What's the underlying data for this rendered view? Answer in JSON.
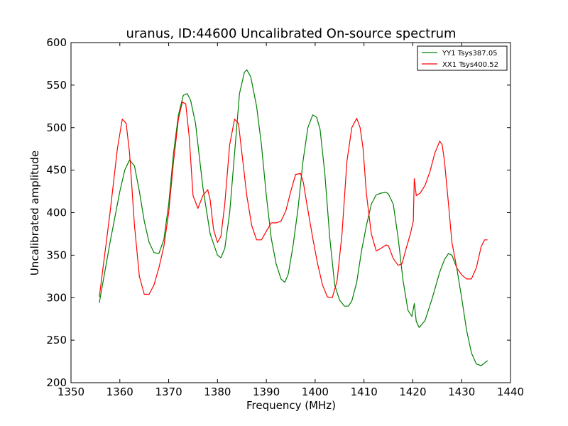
{
  "chart_data": {
    "type": "line",
    "title": "uranus, ID:44600 Uncalibrated On-source spectrum",
    "xlabel": "Frequency (MHz)",
    "ylabel": "Uncalibrated amplitude",
    "xlim": [
      1350,
      1440
    ],
    "ylim": [
      200,
      600
    ],
    "xticks": [
      1350,
      1360,
      1370,
      1380,
      1390,
      1400,
      1410,
      1420,
      1430,
      1440
    ],
    "yticks": [
      200,
      250,
      300,
      350,
      400,
      450,
      500,
      550,
      600
    ],
    "grid": false,
    "legend_position": "top-right",
    "series": [
      {
        "name": "YY1 Tsys387.05",
        "color": "#008000",
        "x": [
          1355.8,
          1358,
          1360,
          1361,
          1362,
          1363,
          1364,
          1365,
          1366,
          1367,
          1368,
          1369,
          1370,
          1371,
          1372,
          1373,
          1373.8,
          1374.5,
          1375.5,
          1377,
          1378.5,
          1380,
          1380.7,
          1381.5,
          1382.5,
          1383.5,
          1384.5,
          1385.5,
          1386,
          1386.8,
          1388,
          1389,
          1390,
          1391,
          1392,
          1393,
          1393.8,
          1394.5,
          1395.5,
          1396.5,
          1397.5,
          1398.5,
          1399.5,
          1400.3,
          1401,
          1402,
          1403,
          1404,
          1405,
          1406,
          1406.8,
          1407.5,
          1408.5,
          1409.5,
          1410.5,
          1411.5,
          1412.5,
          1413.5,
          1414.5,
          1415,
          1416,
          1417,
          1418,
          1419,
          1419.8,
          1420.3,
          1420.7,
          1421.3,
          1422.5,
          1424,
          1425.5,
          1426.5,
          1427.3,
          1428,
          1429,
          1430,
          1431,
          1432,
          1433,
          1434,
          1435.3
        ],
        "y": [
          294,
          365,
          425,
          450,
          462,
          455,
          425,
          390,
          365,
          353,
          352,
          368,
          410,
          470,
          515,
          538,
          540,
          532,
          505,
          430,
          375,
          350,
          347,
          358,
          400,
          470,
          540,
          565,
          568,
          560,
          525,
          480,
          420,
          370,
          340,
          322,
          318,
          328,
          362,
          405,
          460,
          500,
          515,
          512,
          498,
          445,
          370,
          315,
          297,
          290,
          290,
          296,
          318,
          355,
          385,
          410,
          421,
          423,
          424,
          422,
          410,
          370,
          320,
          285,
          278,
          293,
          272,
          265,
          273,
          300,
          330,
          345,
          352,
          350,
          335,
          300,
          262,
          235,
          222,
          220,
          226
        ]
      },
      {
        "name": "XX1 Tsys400.52",
        "color": "#ff0000",
        "x": [
          1355.8,
          1358,
          1359.5,
          1360.5,
          1361.3,
          1362,
          1363,
          1364,
          1365,
          1366,
          1367,
          1368,
          1369,
          1370,
          1371,
          1372,
          1372.8,
          1373.5,
          1374.2,
          1375,
          1376,
          1377,
          1378,
          1378.5,
          1379.2,
          1380,
          1380.7,
          1381.5,
          1382.5,
          1383.5,
          1384.3,
          1385,
          1386,
          1387,
          1388,
          1389,
          1390,
          1391,
          1392,
          1393,
          1394,
          1395,
          1396,
          1397,
          1397.6,
          1398.3,
          1399.5,
          1400.5,
          1401.5,
          1402.5,
          1403.5,
          1404.5,
          1405.5,
          1406.5,
          1407.5,
          1408.5,
          1409.2,
          1409.8,
          1410.5,
          1411.5,
          1412.5,
          1413.5,
          1414.5,
          1415,
          1416,
          1417,
          1417.8,
          1418.5,
          1419.5,
          1420.1,
          1420.3,
          1420.7,
          1421.5,
          1422.5,
          1423.5,
          1424.5,
          1425.5,
          1426,
          1426.5,
          1427.3,
          1428,
          1429,
          1430,
          1431,
          1432,
          1433,
          1434,
          1434.7,
          1435.3
        ],
        "y": [
          301,
          400,
          475,
          510,
          505,
          470,
          385,
          325,
          304,
          304,
          315,
          335,
          360,
          400,
          460,
          510,
          530,
          528,
          490,
          420,
          405,
          420,
          427,
          415,
          380,
          365,
          372,
          410,
          480,
          510,
          505,
          470,
          420,
          385,
          368,
          368,
          378,
          388,
          388,
          390,
          402,
          425,
          445,
          446,
          435,
          410,
          370,
          340,
          315,
          301,
          300,
          320,
          375,
          460,
          500,
          511,
          500,
          476,
          422,
          375,
          355,
          358,
          362,
          361,
          346,
          338,
          340,
          355,
          375,
          390,
          440,
          420,
          423,
          432,
          448,
          470,
          484,
          480,
          460,
          410,
          365,
          335,
          327,
          322,
          322,
          335,
          360,
          368,
          368
        ]
      }
    ]
  }
}
